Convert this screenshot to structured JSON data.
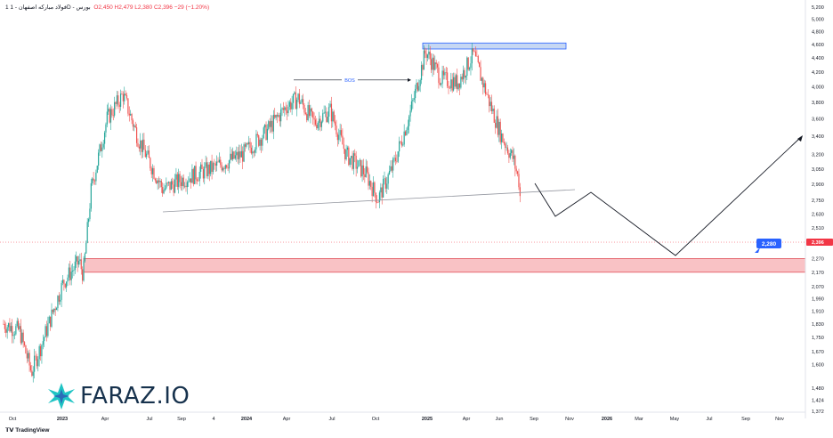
{
  "header": {
    "symbol": "1 فولاد مبارکه اصفهان - 1D - بورس",
    "ohlc": "O2,450 H2,479 L2,380 C2,396 −29 (−1.20%)"
  },
  "watermark": {
    "brand": "FARAZ.IO"
  },
  "footer": {
    "platform": "TradingView"
  },
  "colors": {
    "up": "#26a69a",
    "down": "#ef5350",
    "support_zone": "#f7a8ad",
    "supply_zone": "#b8cdf0",
    "price_label": "#f23645",
    "target_label": "#2962ff"
  },
  "chart_data": {
    "type": "candlestick",
    "price_axis": {
      "ticks": [
        "5,200",
        "5,000",
        "4,800",
        "4,600",
        "4,400",
        "4,200",
        "4,000",
        "3,800",
        "3,600",
        "3,400",
        "3,200",
        "3,050",
        "2,900",
        "2,750",
        "2,630",
        "2,510",
        "2,396",
        "2,270",
        "2,170",
        "2,070",
        "1,990",
        "1,910",
        "1,830",
        "1,750",
        "1,670",
        "1,600",
        "1,480",
        "1,424",
        "1,372"
      ],
      "scale": "log",
      "range": [
        1372,
        5200
      ]
    },
    "time_axis": {
      "ticks": [
        "Oct",
        "2023",
        "Apr",
        "Jul",
        "Sep",
        "4",
        "2024",
        "Apr",
        "Jul",
        "Oct",
        "2025",
        "Apr",
        "Jun",
        "Sep",
        "Nov",
        "2026",
        "Mar",
        "May",
        "Jul",
        "Sep",
        "Nov"
      ]
    },
    "last_price": {
      "value": 2396,
      "label": "2,396"
    },
    "annotations": {
      "bos_label": "BOS",
      "target_label": "2,280",
      "support_zone": {
        "low": 2170,
        "high": 2270
      },
      "supply_zone": {
        "low": 4530,
        "high": 4620
      },
      "bos_level": 4090
    },
    "series_points": [
      {
        "t": 0,
        "p": 1830
      },
      {
        "t": 0.02,
        "p": 1790
      },
      {
        "t": 0.035,
        "p": 1560
      },
      {
        "t": 0.05,
        "p": 1740
      },
      {
        "t": 0.075,
        "p": 2100
      },
      {
        "t": 0.095,
        "p": 2250
      },
      {
        "t": 0.1,
        "p": 2150
      },
      {
        "t": 0.11,
        "p": 2850
      },
      {
        "t": 0.13,
        "p": 3600
      },
      {
        "t": 0.15,
        "p": 3900
      },
      {
        "t": 0.17,
        "p": 3350
      },
      {
        "t": 0.2,
        "p": 2850
      },
      {
        "t": 0.225,
        "p": 2950
      },
      {
        "t": 0.26,
        "p": 3050
      },
      {
        "t": 0.3,
        "p": 3200
      },
      {
        "t": 0.33,
        "p": 3450
      },
      {
        "t": 0.355,
        "p": 3750
      },
      {
        "t": 0.37,
        "p": 3850
      },
      {
        "t": 0.39,
        "p": 3550
      },
      {
        "t": 0.41,
        "p": 3700
      },
      {
        "t": 0.43,
        "p": 3200
      },
      {
        "t": 0.455,
        "p": 3000
      },
      {
        "t": 0.47,
        "p": 2760
      },
      {
        "t": 0.49,
        "p": 3100
      },
      {
        "t": 0.51,
        "p": 3650
      },
      {
        "t": 0.53,
        "p": 4500
      },
      {
        "t": 0.55,
        "p": 4100
      },
      {
        "t": 0.57,
        "p": 4050
      },
      {
        "t": 0.59,
        "p": 4450
      },
      {
        "t": 0.61,
        "p": 3800
      },
      {
        "t": 0.625,
        "p": 3400
      },
      {
        "t": 0.64,
        "p": 3150
      },
      {
        "t": 0.648,
        "p": 2900
      },
      {
        "t": 0.65,
        "p": 2430
      }
    ],
    "projection": [
      {
        "t": 0.665,
        "p": 2880
      },
      {
        "t": 0.69,
        "p": 2570
      },
      {
        "t": 0.735,
        "p": 2790
      },
      {
        "t": 0.84,
        "p": 2240
      },
      {
        "t": 1.0,
        "p": 3380
      }
    ]
  }
}
